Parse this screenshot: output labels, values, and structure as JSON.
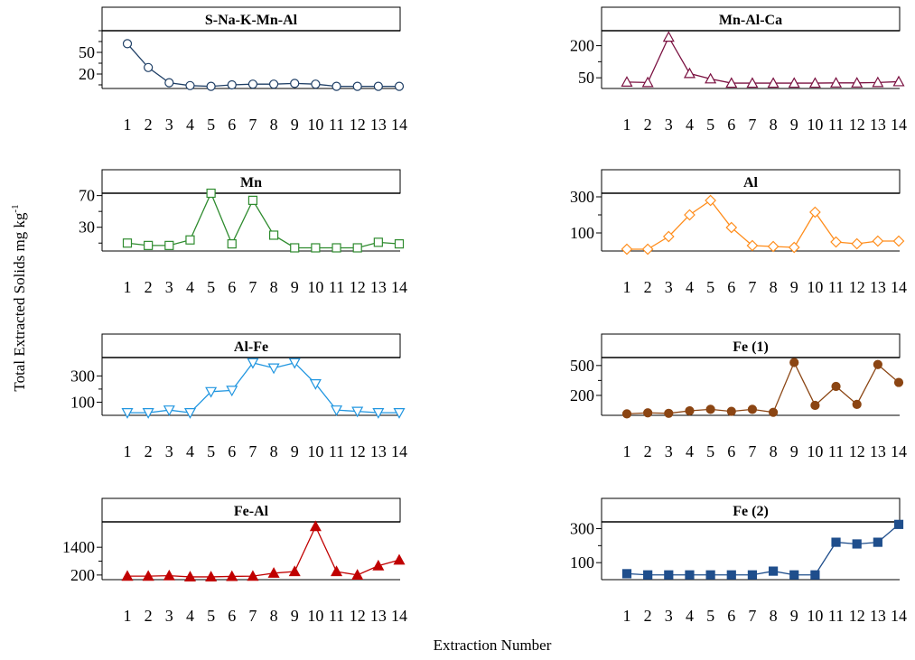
{
  "figure": {
    "ylabel": "Total Extracted Solids mg kg",
    "ylabel_sup": "-1",
    "xlabel": "Extraction Number"
  },
  "chart_data": [
    {
      "type": "line",
      "title": "S-Na-K-Mn-Al",
      "x": [
        1,
        2,
        3,
        4,
        5,
        6,
        7,
        8,
        9,
        10,
        11,
        12,
        13,
        14
      ],
      "y": [
        62,
        29,
        8,
        4,
        3,
        5,
        6,
        6,
        7,
        6,
        3,
        3,
        3,
        3
      ],
      "ylim": [
        0,
        80
      ],
      "yticks": [
        20,
        50
      ],
      "minor_yticks": [
        5,
        35,
        65,
        80
      ],
      "marker": "circle-open",
      "color": "#1f3f66",
      "xlabel": "",
      "ylabel": ""
    },
    {
      "type": "line",
      "title": "Mn-Al-Ca",
      "x": [
        1,
        2,
        3,
        4,
        5,
        6,
        7,
        8,
        9,
        10,
        11,
        12,
        13,
        14
      ],
      "y": [
        30,
        28,
        240,
        70,
        45,
        25,
        25,
        25,
        25,
        25,
        26,
        26,
        28,
        32
      ],
      "ylim": [
        0,
        270
      ],
      "yticks": [
        50,
        200
      ],
      "minor_yticks": [
        125,
        275
      ],
      "marker": "triangle-up-open",
      "color": "#7a1040",
      "xlabel": "",
      "ylabel": ""
    },
    {
      "type": "line",
      "title": "Mn",
      "x": [
        1,
        2,
        3,
        4,
        5,
        6,
        7,
        8,
        9,
        10,
        11,
        12,
        13,
        14
      ],
      "y": [
        10,
        7,
        7,
        14,
        73,
        9,
        64,
        20,
        4,
        4,
        4,
        4,
        11,
        9
      ],
      "ylim": [
        0,
        73
      ],
      "yticks": [
        30,
        70
      ],
      "minor_yticks": [
        10,
        50
      ],
      "marker": "square-open",
      "color": "#2e8b2e",
      "xlabel": "",
      "ylabel": ""
    },
    {
      "type": "line",
      "title": "Al",
      "x": [
        1,
        2,
        3,
        4,
        5,
        6,
        7,
        8,
        9,
        10,
        11,
        12,
        13,
        14
      ],
      "y": [
        10,
        10,
        80,
        200,
        280,
        130,
        30,
        25,
        20,
        215,
        50,
        40,
        55,
        55
      ],
      "ylim": [
        0,
        320
      ],
      "yticks": [
        100,
        300
      ],
      "minor_yticks": [
        200
      ],
      "marker": "diamond-open",
      "color": "#ff8c1a",
      "xlabel": "",
      "ylabel": ""
    },
    {
      "type": "line",
      "title": "Al-Fe",
      "x": [
        1,
        2,
        3,
        4,
        5,
        6,
        7,
        8,
        9,
        10,
        11,
        12,
        13,
        14
      ],
      "y": [
        20,
        20,
        40,
        20,
        180,
        190,
        400,
        360,
        400,
        240,
        40,
        30,
        20,
        20
      ],
      "ylim": [
        0,
        440
      ],
      "yticks": [
        100,
        300
      ],
      "minor_yticks": [
        200
      ],
      "marker": "triangle-down-open",
      "color": "#2196e0",
      "xlabel": "",
      "ylabel": ""
    },
    {
      "type": "line",
      "title": "Fe (1)",
      "x": [
        1,
        2,
        3,
        4,
        5,
        6,
        7,
        8,
        9,
        10,
        11,
        12,
        13,
        14
      ],
      "y": [
        15,
        25,
        20,
        45,
        60,
        40,
        60,
        30,
        530,
        100,
        290,
        110,
        510,
        330
      ],
      "ylim": [
        0,
        580
      ],
      "yticks": [
        200,
        500
      ],
      "minor_yticks": [
        350
      ],
      "marker": "circle-filled",
      "color": "#8b4513",
      "xlabel": "",
      "ylabel": ""
    },
    {
      "type": "line",
      "title": "Fe-Al",
      "x": [
        1,
        2,
        3,
        4,
        5,
        6,
        7,
        8,
        9,
        10,
        11,
        12,
        13,
        14
      ],
      "y": [
        150,
        150,
        170,
        120,
        120,
        140,
        150,
        280,
        350,
        2300,
        350,
        200,
        600,
        850
      ],
      "ylim": [
        0,
        2500
      ],
      "yticks": [
        200,
        1400
      ],
      "minor_yticks": [
        800
      ],
      "marker": "triangle-up-filled",
      "color": "#c00000",
      "xlabel": "",
      "ylabel": ""
    },
    {
      "type": "line",
      "title": "Fe (2)",
      "x": [
        1,
        2,
        3,
        4,
        5,
        6,
        7,
        8,
        9,
        10,
        11,
        12,
        13,
        14
      ],
      "y": [
        35,
        28,
        28,
        28,
        28,
        28,
        28,
        50,
        28,
        28,
        220,
        210,
        220,
        325
      ],
      "ylim": [
        0,
        340
      ],
      "yticks": [
        100,
        300
      ],
      "minor_yticks": [
        200
      ],
      "marker": "square-filled",
      "color": "#1f4e8c",
      "xlabel": "",
      "ylabel": ""
    }
  ]
}
